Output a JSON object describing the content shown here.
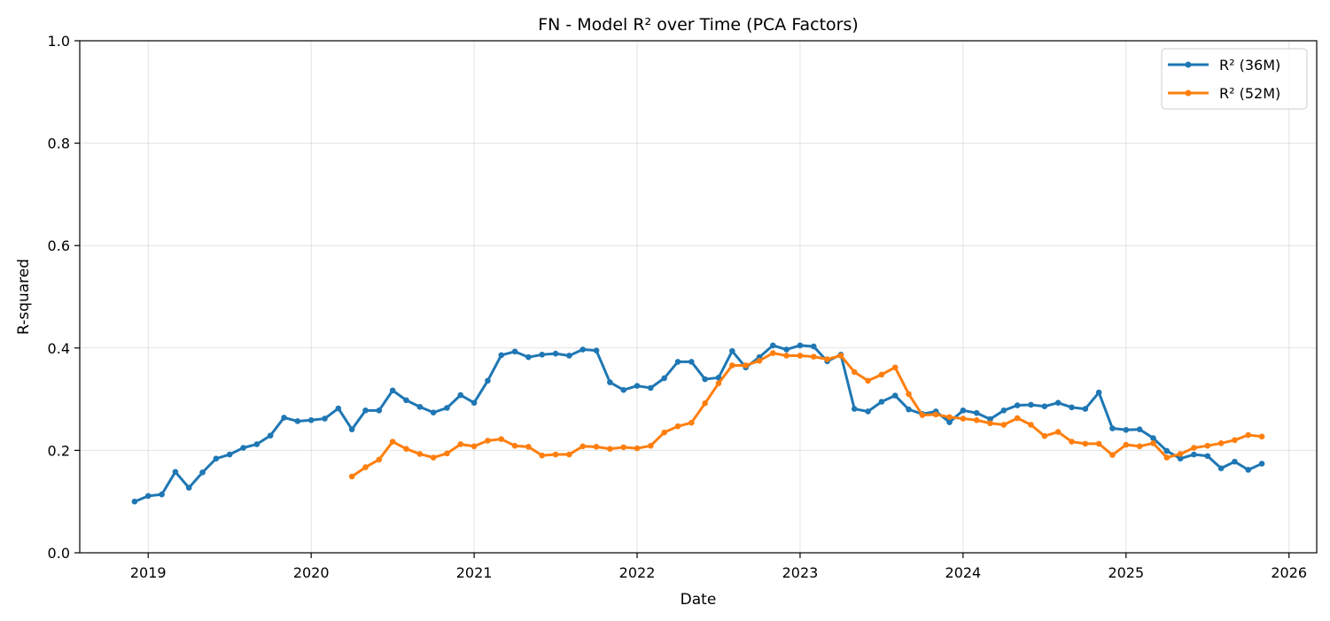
{
  "chart_data": {
    "type": "line",
    "title": "FN - Model R² over Time (PCA Factors)",
    "xlabel": "Date",
    "ylabel": "R-squared",
    "xlim": [
      2018.58,
      2026.17
    ],
    "ylim": [
      0,
      1
    ],
    "x_ticks": [
      2019,
      2020,
      2021,
      2022,
      2023,
      2024,
      2025,
      2026
    ],
    "x_tick_labels": [
      "2019",
      "2020",
      "2021",
      "2022",
      "2023",
      "2024",
      "2025",
      "2026"
    ],
    "y_ticks": [
      0,
      0.2,
      0.4,
      0.6,
      0.8,
      1.0
    ],
    "y_tick_labels": [
      "0.0",
      "0.2",
      "0.4",
      "0.6",
      "0.8",
      "1.0"
    ],
    "grid": true,
    "legend_position": "top-right",
    "series": [
      {
        "name": "R² (36M)",
        "color": "#1f77b4",
        "start": "2018-12",
        "values": [
          0.1,
          0.111,
          0.114,
          0.158,
          0.127,
          0.157,
          0.184,
          0.192,
          0.205,
          0.212,
          0.229,
          0.264,
          0.257,
          0.259,
          0.262,
          0.282,
          0.241,
          0.278,
          0.278,
          0.317,
          0.298,
          0.285,
          0.274,
          0.283,
          0.308,
          0.293,
          0.336,
          0.386,
          0.393,
          0.382,
          0.387,
          0.389,
          0.385,
          0.397,
          0.395,
          0.333,
          0.318,
          0.326,
          0.322,
          0.341,
          0.373,
          0.373,
          0.339,
          0.342,
          0.394,
          0.362,
          0.382,
          0.405,
          0.397,
          0.405,
          0.403,
          0.374,
          0.387,
          0.281,
          0.276,
          0.295,
          0.307,
          0.28,
          0.271,
          0.276,
          0.255,
          0.278,
          0.273,
          0.261,
          0.278,
          0.288,
          0.289,
          0.286,
          0.293,
          0.284,
          0.281,
          0.313,
          0.243,
          0.24,
          0.241,
          0.224,
          0.199,
          0.184,
          0.192,
          0.189,
          0.165,
          0.178,
          0.162,
          0.174
        ]
      },
      {
        "name": "R² (52M)",
        "color": "#ff7f0e",
        "start": "2020-04",
        "values": [
          0.149,
          0.167,
          0.182,
          0.217,
          0.203,
          0.193,
          0.186,
          0.194,
          0.212,
          0.208,
          0.219,
          0.222,
          0.209,
          0.207,
          0.19,
          0.192,
          0.192,
          0.208,
          0.207,
          0.203,
          0.206,
          0.204,
          0.209,
          0.235,
          0.247,
          0.254,
          0.292,
          0.331,
          0.366,
          0.366,
          0.375,
          0.39,
          0.385,
          0.385,
          0.383,
          0.378,
          0.385,
          0.353,
          0.336,
          0.348,
          0.362,
          0.31,
          0.269,
          0.27,
          0.265,
          0.262,
          0.259,
          0.253,
          0.25,
          0.263,
          0.25,
          0.228,
          0.236,
          0.217,
          0.213,
          0.213,
          0.191,
          0.211,
          0.208,
          0.214,
          0.186,
          0.193,
          0.205,
          0.209,
          0.214,
          0.22,
          0.23,
          0.227
        ]
      }
    ]
  }
}
